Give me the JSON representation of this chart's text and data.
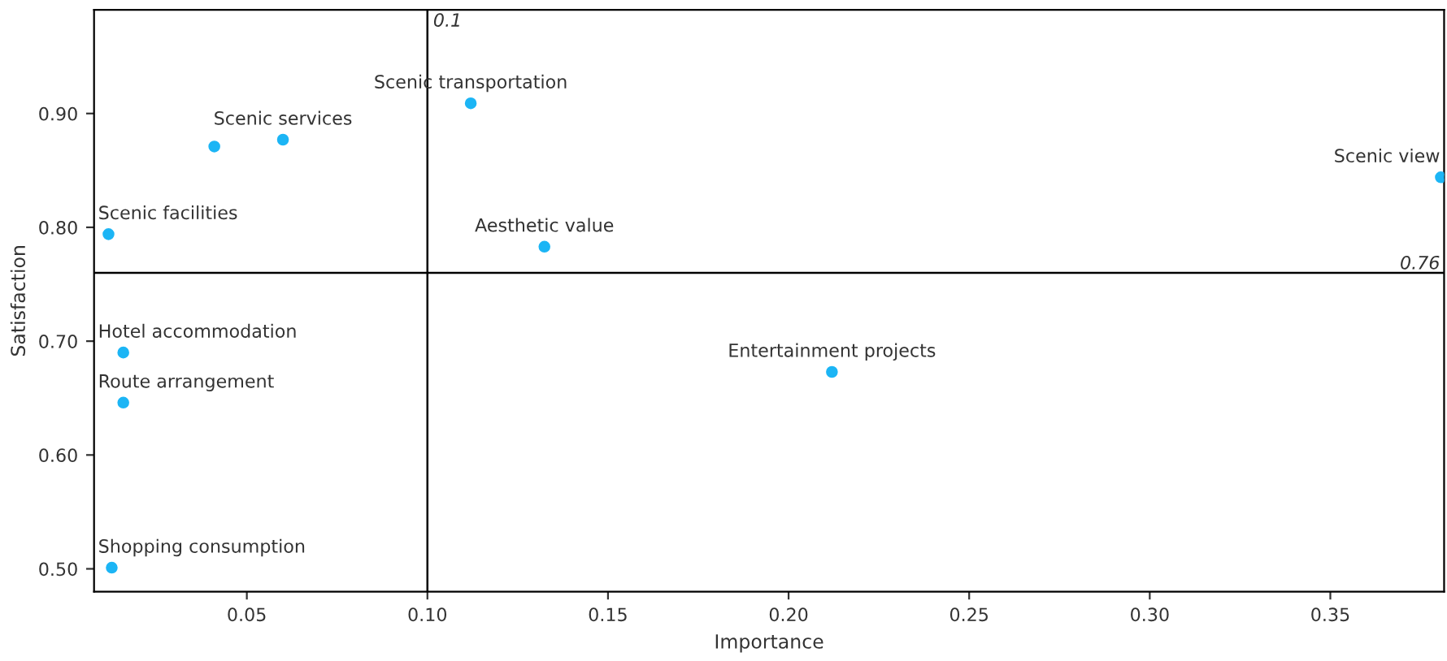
{
  "chart_data": {
    "type": "scatter",
    "xlabel": "Importance",
    "ylabel": "Satisfaction",
    "x": [
      0.112,
      0.041,
      0.06,
      0.0117,
      0.1324,
      0.3806,
      0.0158,
      0.0158,
      0.212,
      0.0126
    ],
    "series": [
      {
        "color": "#1cb5f5",
        "values": [
          0.909,
          0.871,
          0.877,
          0.794,
          0.783,
          0.844,
          0.69,
          0.646,
          0.673,
          0.501
        ]
      }
    ],
    "annotations": [
      {
        "text": "Scenic transportation",
        "x": 0.112,
        "y": 0.909
      },
      {
        "text": "Scenic services",
        "x": 0.06,
        "y": 0.877
      },
      {
        "text": "Scenic facilities",
        "x": 0.0117,
        "y": 0.794
      },
      {
        "text": "Aesthetic value",
        "x": 0.1324,
        "y": 0.783
      },
      {
        "text": "Scenic view",
        "x": 0.3806,
        "y": 0.844
      },
      {
        "text": "Hotel accommodation",
        "x": 0.0158,
        "y": 0.69
      },
      {
        "text": "Route arrangement",
        "x": 0.0158,
        "y": 0.646
      },
      {
        "text": "Entertainment projects",
        "x": 0.212,
        "y": 0.673
      },
      {
        "text": "Shopping consumption",
        "x": 0.0126,
        "y": 0.501
      }
    ],
    "ref_lines": [
      {
        "axis": "x",
        "value": 0.1,
        "label": "0.1",
        "color": "#000000"
      },
      {
        "axis": "y",
        "value": 0.76,
        "label": "0.76",
        "color": "#000000"
      }
    ],
    "xlim": [
      0.0077,
      0.3815
    ],
    "ylim": [
      0.48,
      0.991
    ],
    "xticks": [
      {
        "value": 0.05,
        "label": "0.05"
      },
      {
        "value": 0.1,
        "label": "0.10"
      },
      {
        "value": 0.15,
        "label": "0.15"
      },
      {
        "value": 0.2,
        "label": "0.20"
      },
      {
        "value": 0.25,
        "label": "0.25"
      },
      {
        "value": 0.3,
        "label": "0.30"
      },
      {
        "value": 0.35,
        "label": "0.35"
      }
    ],
    "yticks": [
      {
        "value": 0.5,
        "label": "0.50"
      },
      {
        "value": 0.6,
        "label": "0.60"
      },
      {
        "value": 0.7,
        "label": "0.70"
      },
      {
        "value": 0.8,
        "label": "0.80"
      },
      {
        "value": 0.9,
        "label": "0.90"
      }
    ],
    "grid": false,
    "marker": "circle"
  }
}
